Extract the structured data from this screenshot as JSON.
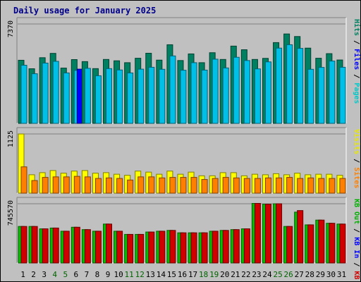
{
  "chart_data": [
    {
      "panel": "top",
      "type": "bar",
      "title": "Daily usage for January 2025",
      "ymax_label": "7370",
      "ylim": [
        0,
        7370
      ],
      "categories": [
        "1",
        "2",
        "3",
        "4",
        "5",
        "6",
        "7",
        "8",
        "9",
        "10",
        "11",
        "12",
        "13",
        "14",
        "15",
        "16",
        "17",
        "18",
        "19",
        "20",
        "21",
        "22",
        "23",
        "24",
        "25",
        "26",
        "27",
        "28",
        "29",
        "30",
        "31"
      ],
      "weekend_days": [
        "4",
        "5",
        "11",
        "12",
        "18",
        "19",
        "25",
        "26"
      ],
      "legend": [
        "Pages",
        "Files",
        "Hits"
      ],
      "series": [
        {
          "name": "Hits",
          "color": "#008060",
          "values": [
            4680,
            4050,
            4870,
            5190,
            4100,
            4730,
            4580,
            4060,
            4740,
            4640,
            4500,
            4830,
            5200,
            4690,
            5830,
            4660,
            5150,
            4500,
            5240,
            4740,
            5730,
            5460,
            4740,
            4820,
            5990,
            6630,
            6440,
            5580,
            4830,
            5170,
            4700
          ]
        },
        {
          "name": "Files",
          "color": "#00c0e8",
          "values": [
            4310,
            3680,
            4470,
            4600,
            3740,
            3930,
            4080,
            3530,
            4060,
            3960,
            3740,
            4020,
            4160,
            4010,
            5000,
            3940,
            4500,
            3950,
            4760,
            4110,
            4900,
            4660,
            4040,
            4560,
            5580,
            5830,
            5560,
            4010,
            4150,
            4620,
            4160
          ]
        },
        {
          "name": "Pages",
          "color": "#0000ff",
          "values": [
            0,
            0,
            0,
            0,
            0,
            4020,
            0,
            0,
            0,
            0,
            0,
            0,
            0,
            0,
            0,
            0,
            0,
            0,
            0,
            0,
            0,
            0,
            0,
            0,
            0,
            0,
            0,
            0,
            0,
            0,
            0
          ]
        }
      ]
    },
    {
      "panel": "middle",
      "type": "bar",
      "ymax_label": "1125",
      "ylim": [
        0,
        1125
      ],
      "legend": [
        "Sites",
        "Visits"
      ],
      "series": [
        {
          "name": "Visits",
          "color": "#ffff00",
          "values": [
            1125,
            350,
            390,
            430,
            380,
            420,
            430,
            380,
            390,
            360,
            340,
            420,
            400,
            360,
            420,
            360,
            400,
            330,
            330,
            390,
            390,
            330,
            360,
            350,
            370,
            350,
            380,
            350,
            360,
            360,
            340
          ]
        },
        {
          "name": "Sites",
          "color": "#ff8000",
          "values": [
            500,
            240,
            300,
            310,
            310,
            320,
            310,
            280,
            290,
            280,
            250,
            310,
            310,
            290,
            300,
            300,
            300,
            260,
            280,
            300,
            290,
            280,
            280,
            290,
            290,
            300,
            280,
            290,
            280,
            280,
            280
          ]
        }
      ]
    },
    {
      "panel": "bottom",
      "type": "bar",
      "ymax_label": "745570",
      "ylim": [
        0,
        745570
      ],
      "legend": [
        "KB F",
        "KB In",
        "KB Out"
      ],
      "series": [
        {
          "name": "KB Out",
          "color": "#00c000",
          "values": [
            460000,
            460000,
            430000,
            440000,
            400000,
            450000,
            420000,
            400000,
            490000,
            400000,
            360000,
            360000,
            390000,
            400000,
            410000,
            380000,
            380000,
            380000,
            400000,
            410000,
            420000,
            430000,
            750000,
            740000,
            745570,
            460000,
            640000,
            480000,
            540000,
            500000,
            490000
          ]
        },
        {
          "name": "KB F",
          "color": "#d00000",
          "values": [
            460000,
            460000,
            430000,
            440000,
            400000,
            450000,
            420000,
            400000,
            490000,
            400000,
            360000,
            360000,
            390000,
            400000,
            410000,
            380000,
            380000,
            380000,
            400000,
            410000,
            420000,
            430000,
            750000,
            740000,
            745570,
            460000,
            660000,
            480000,
            540000,
            500000,
            490000
          ]
        }
      ]
    }
  ],
  "legend_colors": {
    "Pages": "#00c8c8",
    "Files": "#0000ff",
    "Hits": "#008060",
    "Visits": "#e8e800",
    "Sites": "#ff8000",
    "KB F": "#d00000",
    "KB In": "#0000ff",
    "KB Out": "#00b000",
    "separator": "#000000"
  },
  "weekday_color": "#000000",
  "weekend_color": "#006400"
}
